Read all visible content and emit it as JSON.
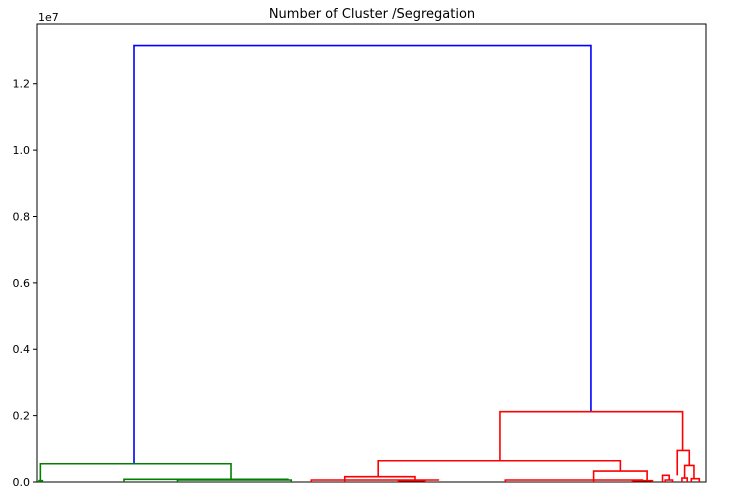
{
  "chart_data": {
    "type": "dendrogram",
    "title": "Number of Cluster /Segregation",
    "xlabel": "",
    "ylabel": "",
    "y_scale_offset": "1e7",
    "ylim": [
      0,
      1.38
    ],
    "y_ticks": [
      0.0,
      0.2,
      0.4,
      0.6,
      0.8,
      1.0,
      1.2
    ],
    "y_tick_labels": [
      "0.0",
      "0.2",
      "0.4",
      "0.6",
      "0.8",
      "1.0",
      "1.2"
    ],
    "grid": false,
    "colors": {
      "root": "#0000ff",
      "cluster_1": "#008000",
      "cluster_2": "#ff0000"
    },
    "links": [
      {
        "color": "#0000ff",
        "height": 1.315,
        "left": {
          "x": 0.145,
          "h": 0.055
        },
        "right": {
          "x": 0.828,
          "h": 0.212
        }
      },
      {
        "color": "#008000",
        "height": 0.055,
        "left": {
          "x": 0.005,
          "h": 0.0
        },
        "right": {
          "x": 0.29,
          "h": 0.008
        }
      },
      {
        "color": "#008000",
        "height": 0.008,
        "left": {
          "x": 0.13,
          "h": 0.0
        },
        "right": {
          "x": 0.375,
          "h": 0.006
        }
      },
      {
        "color": "#008000",
        "height": 0.006,
        "left": {
          "x": 0.21,
          "h": 0.0
        },
        "right": {
          "x": 0.38,
          "h": 0.0
        }
      },
      {
        "color": "#008000",
        "height": 0.004,
        "left": {
          "x": 0.003,
          "h": 0.0
        },
        "right": {
          "x": 0.008,
          "h": 0.0
        }
      },
      {
        "color": "#ff0000",
        "height": 0.212,
        "left": {
          "x": 0.692,
          "h": 0.064
        },
        "right": {
          "x": 0.965,
          "h": 0.095
        }
      },
      {
        "color": "#ff0000",
        "height": 0.064,
        "left": {
          "x": 0.51,
          "h": 0.016
        },
        "right": {
          "x": 0.872,
          "h": 0.033
        }
      },
      {
        "color": "#ff0000",
        "height": 0.016,
        "left": {
          "x": 0.46,
          "h": 0.0
        },
        "right": {
          "x": 0.565,
          "h": 0.006
        }
      },
      {
        "color": "#ff0000",
        "height": 0.006,
        "left": {
          "x": 0.41,
          "h": 0.0
        },
        "right": {
          "x": 0.6,
          "h": 0.004
        }
      },
      {
        "color": "#ff0000",
        "height": 0.004,
        "left": {
          "x": 0.54,
          "h": 0.0
        },
        "right": {
          "x": 0.58,
          "h": 0.0
        }
      },
      {
        "color": "#ff0000",
        "height": 0.033,
        "left": {
          "x": 0.832,
          "h": 0.0
        },
        "right": {
          "x": 0.912,
          "h": 0.006
        }
      },
      {
        "color": "#ff0000",
        "height": 0.006,
        "left": {
          "x": 0.7,
          "h": 0.0
        },
        "right": {
          "x": 0.905,
          "h": 0.004
        }
      },
      {
        "color": "#ff0000",
        "height": 0.004,
        "left": {
          "x": 0.89,
          "h": 0.0
        },
        "right": {
          "x": 0.92,
          "h": 0.0
        }
      },
      {
        "color": "#ff0000",
        "height": 0.095,
        "left": {
          "x": 0.957,
          "h": 0.02
        },
        "right": {
          "x": 0.975,
          "h": 0.05
        }
      },
      {
        "color": "#ff0000",
        "height": 0.02,
        "left": {
          "x": 0.935,
          "h": 0.0
        },
        "right": {
          "x": 0.945,
          "h": 0.006
        }
      },
      {
        "color": "#ff0000",
        "height": 0.006,
        "left": {
          "x": 0.939,
          "h": 0.0
        },
        "right": {
          "x": 0.95,
          "h": 0.0
        }
      },
      {
        "color": "#ff0000",
        "height": 0.05,
        "left": {
          "x": 0.968,
          "h": 0.012
        },
        "right": {
          "x": 0.982,
          "h": 0.01
        }
      },
      {
        "color": "#ff0000",
        "height": 0.012,
        "left": {
          "x": 0.964,
          "h": 0.0
        },
        "right": {
          "x": 0.972,
          "h": 0.0
        }
      },
      {
        "color": "#ff0000",
        "height": 0.01,
        "left": {
          "x": 0.978,
          "h": 0.0
        },
        "right": {
          "x": 0.99,
          "h": 0.0
        }
      }
    ]
  }
}
